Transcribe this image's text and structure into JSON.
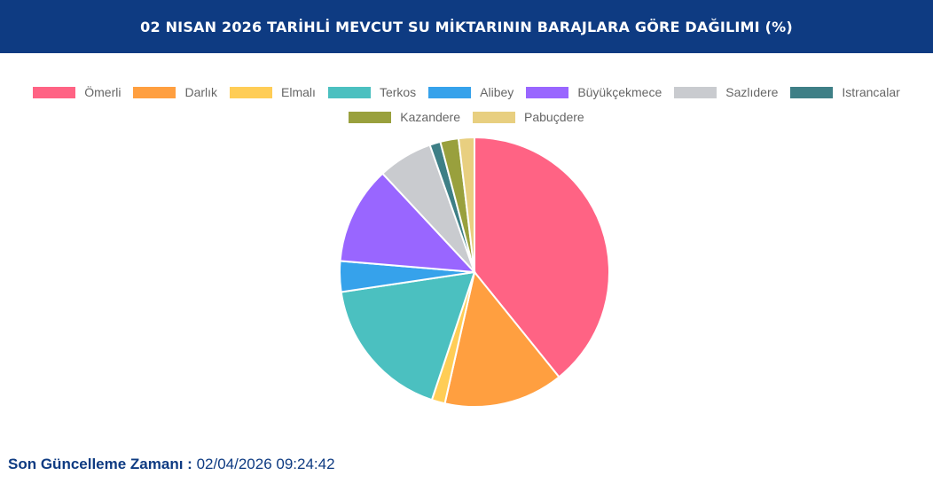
{
  "header": {
    "title": "02 NISAN 2026 TARİHLİ MEVCUT SU MİKTARININ BARAJLARA GÖRE DAĞILIMI (%)"
  },
  "footer": {
    "label": "Son Güncelleme Zamanı :",
    "value": "02/04/2026 09:24:42"
  },
  "chart_data": {
    "type": "pie",
    "title": "02 NISAN 2026 TARİHLİ MEVCUT SU MİKTARININ BARAJLARA GÖRE DAĞILIMI (%)",
    "legend_position": "top",
    "categories": [
      "Ömerli",
      "Darlık",
      "Elmalı",
      "Terkos",
      "Alibey",
      "Büyükçekmece",
      "Sazlıdere",
      "Istrancalar",
      "Kazandere",
      "Pabuçdere"
    ],
    "values": [
      39.4,
      14.4,
      1.6,
      17.6,
      3.7,
      11.8,
      6.6,
      1.3,
      2.2,
      1.9
    ],
    "colors": [
      "#ff6384",
      "#ff9f40",
      "#ffcd56",
      "#4bc0c0",
      "#36a2eb",
      "#9966ff",
      "#c9cbcf",
      "#3e7f86",
      "#99a03d",
      "#e8cf80"
    ]
  }
}
